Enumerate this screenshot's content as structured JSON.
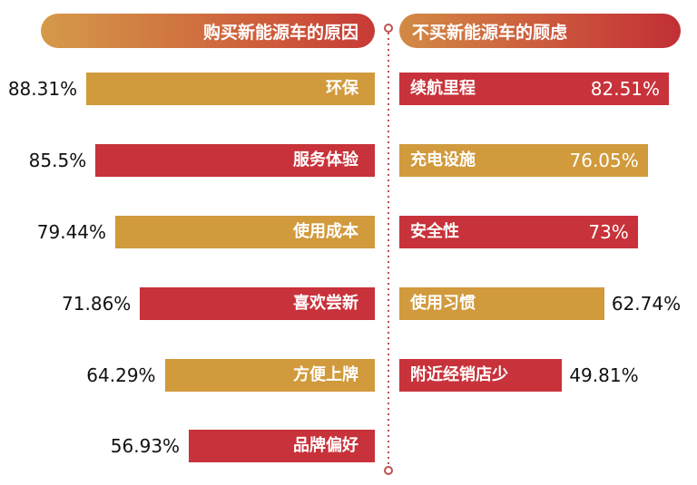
{
  "colors": {
    "gold": "#d19a3c",
    "red": "#c8323a",
    "divider": "#c0504d"
  },
  "left_header": "购买新能源车的原因",
  "right_header": "不买新能源车的顾虑",
  "chart_data": [
    {
      "type": "bar",
      "orientation": "horizontal",
      "title": "购买新能源车的原因",
      "categories": [
        "环保",
        "服务体验",
        "使用成本",
        "喜欢尝新",
        "方便上牌",
        "品牌偏好"
      ],
      "values": [
        88.31,
        85.5,
        79.44,
        71.86,
        64.29,
        56.93
      ],
      "value_labels": [
        "88.31%",
        "85.5%",
        "79.44%",
        "71.86%",
        "64.29%",
        "56.93%"
      ],
      "bar_colors": [
        "#d19a3c",
        "#c8323a",
        "#d19a3c",
        "#c8323a",
        "#d19a3c",
        "#c8323a"
      ],
      "unit": "%"
    },
    {
      "type": "bar",
      "orientation": "horizontal",
      "title": "不买新能源车的顾虑",
      "categories": [
        "续航里程",
        "充电设施",
        "安全性",
        "使用习惯",
        "附近经销店少"
      ],
      "values": [
        82.51,
        76.05,
        73,
        62.74,
        49.81
      ],
      "value_labels": [
        "82.51%",
        "76.05%",
        "73%",
        "62.74%",
        "49.81%"
      ],
      "bar_colors": [
        "#c8323a",
        "#d19a3c",
        "#c8323a",
        "#d19a3c",
        "#c8323a"
      ],
      "unit": "%"
    }
  ]
}
